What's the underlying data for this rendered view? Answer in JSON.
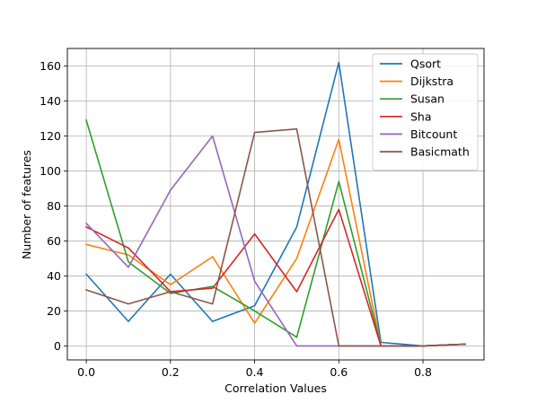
{
  "chart_data": {
    "type": "line",
    "title": "",
    "xlabel": "Correlation Values",
    "ylabel": "Number of features",
    "x": [
      0.0,
      0.1,
      0.2,
      0.3,
      0.4,
      0.5,
      0.6,
      0.7,
      0.8,
      0.9
    ],
    "xlim": [
      -0.045,
      0.945
    ],
    "ylim": [
      -8,
      170
    ],
    "xticks": [
      {
        "value": 0.0,
        "label": "0.0"
      },
      {
        "value": 0.2,
        "label": "0.2"
      },
      {
        "value": 0.4,
        "label": "0.4"
      },
      {
        "value": 0.6,
        "label": "0.6"
      },
      {
        "value": 0.8,
        "label": "0.8"
      }
    ],
    "yticks": [
      {
        "value": 0,
        "label": "0"
      },
      {
        "value": 20,
        "label": "20"
      },
      {
        "value": 40,
        "label": "40"
      },
      {
        "value": 60,
        "label": "60"
      },
      {
        "value": 80,
        "label": "80"
      },
      {
        "value": 100,
        "label": "100"
      },
      {
        "value": 120,
        "label": "120"
      },
      {
        "value": 140,
        "label": "140"
      },
      {
        "value": 160,
        "label": "160"
      }
    ],
    "grid": true,
    "legend_position": "top-right",
    "series": [
      {
        "name": "Qsort",
        "color": "#1f77b4",
        "values": [
          41,
          14,
          41,
          14,
          23,
          68,
          162,
          2,
          0,
          1
        ]
      },
      {
        "name": "Dijkstra",
        "color": "#ff7f0e",
        "values": [
          58,
          52,
          35,
          51,
          13,
          50,
          118,
          0,
          0,
          1
        ]
      },
      {
        "name": "Susan",
        "color": "#2ca02c",
        "values": [
          129,
          48,
          30,
          34,
          20,
          5,
          94,
          0,
          0,
          1
        ]
      },
      {
        "name": "Sha",
        "color": "#d62728",
        "values": [
          68,
          56,
          31,
          33,
          64,
          31,
          78,
          0,
          0,
          1
        ]
      },
      {
        "name": "Bitcount",
        "color": "#9467bd",
        "values": [
          70,
          45,
          89,
          120,
          37,
          0,
          0,
          0,
          0,
          1
        ]
      },
      {
        "name": "Basicmath",
        "color": "#8c564b",
        "values": [
          32,
          24,
          31,
          24,
          122,
          124,
          0,
          0,
          0,
          1
        ]
      }
    ]
  }
}
